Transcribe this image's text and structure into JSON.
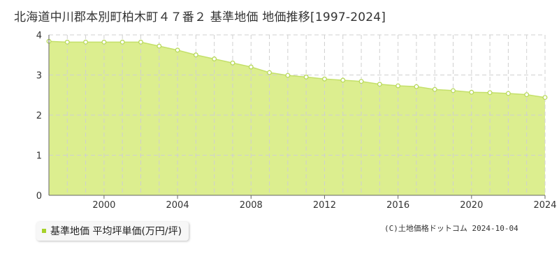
{
  "title": "北海道中川郡本別町柏木町４７番２ 基準地価 地価推移[1997-2024]",
  "legend": {
    "label": "基準地価 平均坪単価(万円/坪)",
    "color": "#a6d12a"
  },
  "credit": "(C)土地価格ドットコム 2024-10-04",
  "colors": {
    "fill": "#dcee8f",
    "line": "#c4e06a",
    "point_stroke": "#b8d95a",
    "grid": "#d0d0d0",
    "axis": "#666666"
  },
  "chart_data": {
    "type": "area",
    "title": "北海道中川郡本別町柏木町４７番２ 基準地価 地価推移[1997-2024]",
    "xlabel": "",
    "ylabel": "",
    "xlim": [
      1997,
      2024
    ],
    "ylim": [
      0,
      4
    ],
    "x_ticks": [
      "2000",
      "2004",
      "2008",
      "2012",
      "2016",
      "2020",
      "2024"
    ],
    "y_ticks": [
      "0",
      "1",
      "2",
      "3",
      "4"
    ],
    "grid": true,
    "series": [
      {
        "name": "基準地価 平均坪単価(万円/坪)",
        "x": [
          1997,
          1998,
          1999,
          2000,
          2001,
          2002,
          2003,
          2004,
          2005,
          2006,
          2007,
          2008,
          2009,
          2010,
          2011,
          2012,
          2013,
          2014,
          2015,
          2016,
          2017,
          2018,
          2019,
          2020,
          2021,
          2022,
          2023,
          2024
        ],
        "values": [
          3.84,
          3.82,
          3.82,
          3.82,
          3.82,
          3.82,
          3.72,
          3.62,
          3.5,
          3.4,
          3.3,
          3.2,
          3.06,
          2.99,
          2.95,
          2.9,
          2.87,
          2.84,
          2.77,
          2.73,
          2.71,
          2.64,
          2.61,
          2.57,
          2.56,
          2.54,
          2.51,
          2.44
        ]
      }
    ]
  }
}
